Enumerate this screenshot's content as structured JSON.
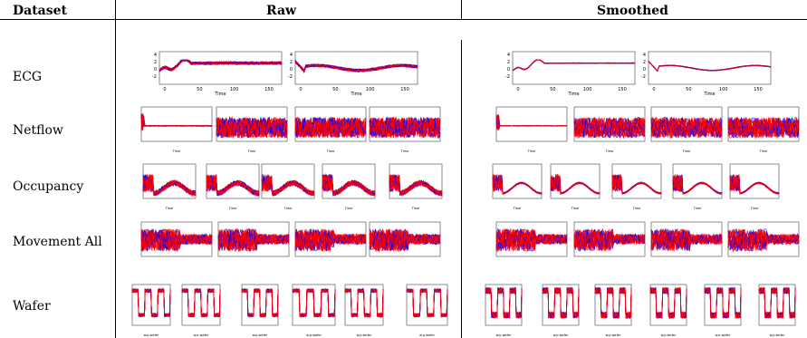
{
  "headers": {
    "dataset": "Dataset",
    "raw": "Raw",
    "smoothed": "Smoothed"
  },
  "rows": [
    {
      "label": "ECG",
      "raw": 2,
      "smoothed": 2,
      "x_ticks": [
        "0",
        "50",
        "100",
        "150"
      ],
      "y_ticks": [
        "-2",
        "0",
        "2",
        "4"
      ],
      "x_label": "Time"
    },
    {
      "label": "Netflow",
      "raw": 4,
      "smoothed": 4,
      "x_label": "Time"
    },
    {
      "label": "Occupancy",
      "raw": 5,
      "smoothed": 6,
      "x_label": "Time"
    },
    {
      "label": "Movement All",
      "raw": 4,
      "smoothed": 4
    },
    {
      "label": "Wafer",
      "raw": 6,
      "smoothed": 6,
      "x_label": "w.p.wafer"
    }
  ],
  "colors": {
    "class1": "#ff0000",
    "class2": "#0000ff"
  }
}
